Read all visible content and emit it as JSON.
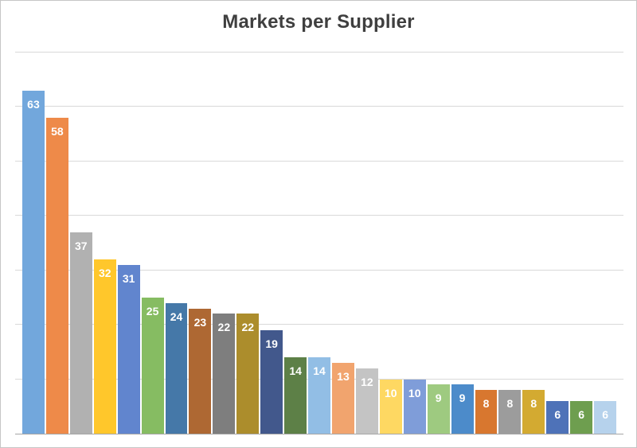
{
  "chart_data": {
    "type": "bar",
    "title": "Markets per Supplier",
    "xlabel": "",
    "ylabel": "",
    "categories": [],
    "values": [
      63,
      58,
      37,
      32,
      31,
      25,
      24,
      23,
      22,
      22,
      19,
      14,
      14,
      13,
      12,
      10,
      10,
      9,
      9,
      8,
      8,
      8,
      6,
      6,
      6
    ],
    "bar_colors": [
      "#72A7DC",
      "#EE8A49",
      "#B1B1B1",
      "#FFC72B",
      "#6185CE",
      "#86BC62",
      "#4578A8",
      "#AE6833",
      "#7E7E7E",
      "#AC8D2C",
      "#42588C",
      "#5D8047",
      "#92BEE5",
      "#F1A46E",
      "#C4C4C4",
      "#FED862",
      "#7F9DD9",
      "#9ECA80",
      "#4C8BCA",
      "#D8772F",
      "#9C9C9C",
      "#D3AA31",
      "#4E72B8",
      "#6E9E4F",
      "#B6D2EC"
    ],
    "ylim": [
      0,
      70
    ],
    "gridline_step": 10,
    "grid": "horizontal",
    "legend": "none",
    "axis_tick_labels_visible": false,
    "data_labels": {
      "position": "inside-top",
      "color": "#FFFFFF"
    }
  },
  "styles": {
    "title_color": "#3F3F3F",
    "gridline_color": "#D9D9D9",
    "axis_line_color": "#A6A6A6",
    "background_color": "#FFFFFF",
    "frame_border_color": "#C6C6C6"
  }
}
